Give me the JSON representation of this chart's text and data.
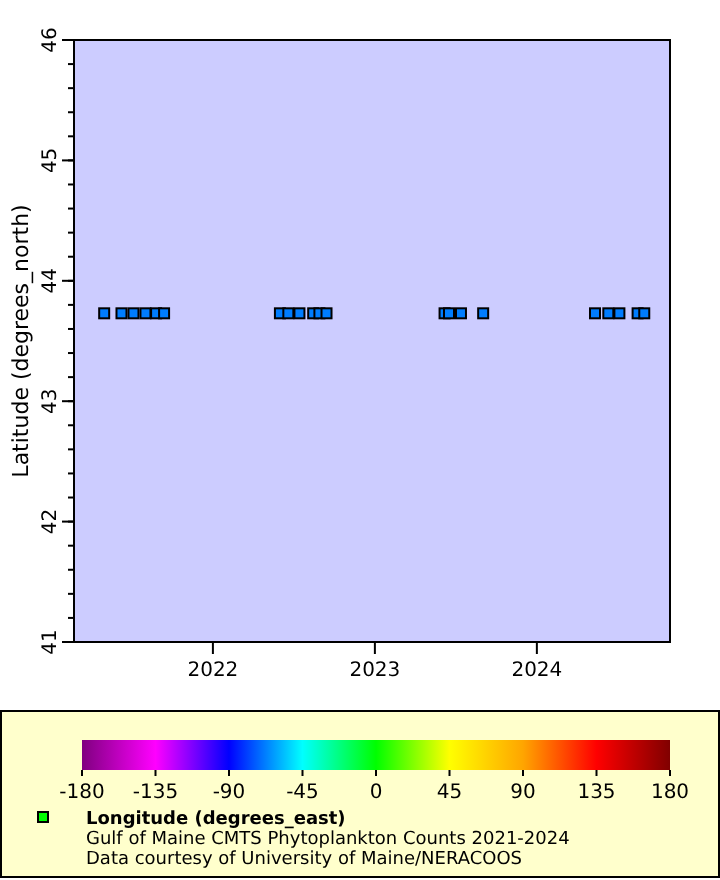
{
  "chart_data": {
    "type": "scatter",
    "title": "Gulf of Maine CMTS Phytoplankton Counts 2021-2024",
    "ylabel": "Latitude (degrees_north)",
    "clabel": "Longitude (degrees_east)",
    "annotations": [
      "Data courtesy of University of Maine/NERACOOS"
    ],
    "x": [
      "2021-05-01",
      "2021-06-09",
      "2021-07-06",
      "2021-08-02",
      "2021-08-26",
      "2021-09-13",
      "2022-06-01",
      "2022-06-20",
      "2022-07-15",
      "2022-08-15",
      "2022-08-29",
      "2022-09-14",
      "2023-06-07",
      "2023-06-17",
      "2023-07-14",
      "2023-09-02",
      "2024-05-11",
      "2024-06-10",
      "2024-07-05",
      "2024-08-15",
      "2024-08-30"
    ],
    "values": [
      43.73,
      43.73,
      43.73,
      43.73,
      43.73,
      43.73,
      43.73,
      43.73,
      43.73,
      43.73,
      43.73,
      43.73,
      43.73,
      43.73,
      43.73,
      43.73,
      43.73,
      43.73,
      43.73,
      43.73,
      43.73
    ],
    "cvalues": [
      -68,
      -68,
      -68,
      -68,
      -68,
      -68,
      -68,
      -68,
      -68,
      -68,
      -68,
      -68,
      -68,
      -68,
      -68,
      -68,
      -68,
      -68,
      -68,
      -68,
      -68
    ],
    "clim": [
      -180,
      180
    ],
    "cticks": [
      -180,
      -135,
      -90,
      -45,
      0,
      45,
      90,
      135,
      180
    ],
    "xlim": [
      "2021-02-22",
      "2024-10-27"
    ],
    "xticks": [
      {
        "value": "2022-01-01",
        "label": "2022"
      },
      {
        "value": "2023-01-01",
        "label": "2023"
      },
      {
        "value": "2024-01-01",
        "label": "2024"
      }
    ],
    "ylim": [
      41,
      46
    ],
    "yticks": [
      41,
      42,
      43,
      44,
      45,
      46
    ],
    "marker": "square",
    "grid": false
  }
}
